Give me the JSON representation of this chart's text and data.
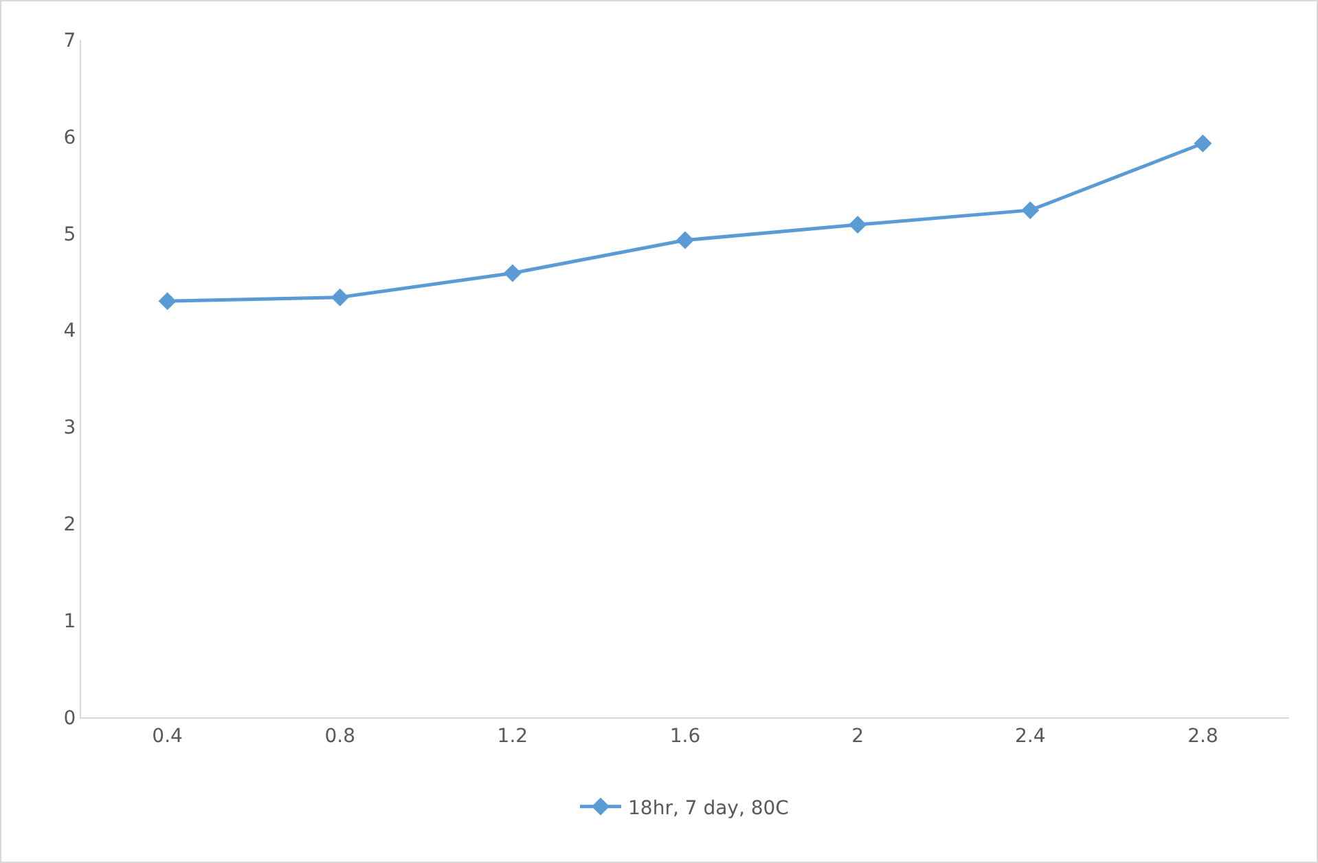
{
  "chart_data": {
    "type": "line",
    "categories": [
      "0.4",
      "0.8",
      "1.2",
      "1.6",
      "2",
      "2.4",
      "2.8"
    ],
    "series": [
      {
        "name": "18hr, 7 day, 80C",
        "color": "#5b9bd5",
        "values": [
          4.3,
          4.34,
          4.59,
          4.93,
          5.09,
          5.24,
          5.93
        ]
      }
    ],
    "ylim": [
      0,
      7
    ],
    "yticks": [
      0,
      1,
      2,
      3,
      4,
      5,
      6,
      7
    ],
    "grid": false,
    "legend": "bottom",
    "marker": "diamond",
    "line_style": "solid"
  }
}
